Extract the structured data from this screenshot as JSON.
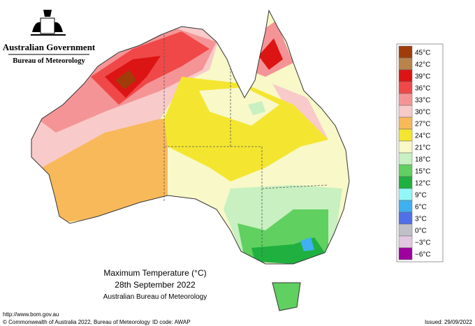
{
  "header": {
    "title": "Australian Government",
    "subtitle": "Bureau of Meteorology"
  },
  "legend": [
    {
      "label": "45°C",
      "color": "#a03c0a"
    },
    {
      "label": "42°C",
      "color": "#b8844a"
    },
    {
      "label": "39°C",
      "color": "#dd1414"
    },
    {
      "label": "36°C",
      "color": "#f04848"
    },
    {
      "label": "33°C",
      "color": "#f59496"
    },
    {
      "label": "30°C",
      "color": "#f9caca"
    },
    {
      "label": "27°C",
      "color": "#f8b95a"
    },
    {
      "label": "24°C",
      "color": "#f4e630"
    },
    {
      "label": "21°C",
      "color": "#f8f8c8"
    },
    {
      "label": "18°C",
      "color": "#c8f0c0"
    },
    {
      "label": "15°C",
      "color": "#60d060"
    },
    {
      "label": "12°C",
      "color": "#20b040"
    },
    {
      "label": "9°C",
      "color": "#90f8f8"
    },
    {
      "label": "6°C",
      "color": "#40b0f0"
    },
    {
      "label": "3°C",
      "color": "#5070e8"
    },
    {
      "label": "0°C",
      "color": "#c0c0c8"
    },
    {
      "label": "−3°C",
      "color": "#e0c8e0"
    },
    {
      "label": "−6°C",
      "color": "#a000a0"
    }
  ],
  "caption": {
    "title": "Maximum Temperature (°C)",
    "date": "28th September 2022",
    "source": "Australian Bureau of Meteorology"
  },
  "footer": {
    "url": "http://www.bom.gov.au",
    "copyright": "© Commonwealth of Australia 2022, Bureau of Meteorology",
    "id_code": "ID code: AWAP",
    "issued": "Issued: 29/09/2022"
  }
}
